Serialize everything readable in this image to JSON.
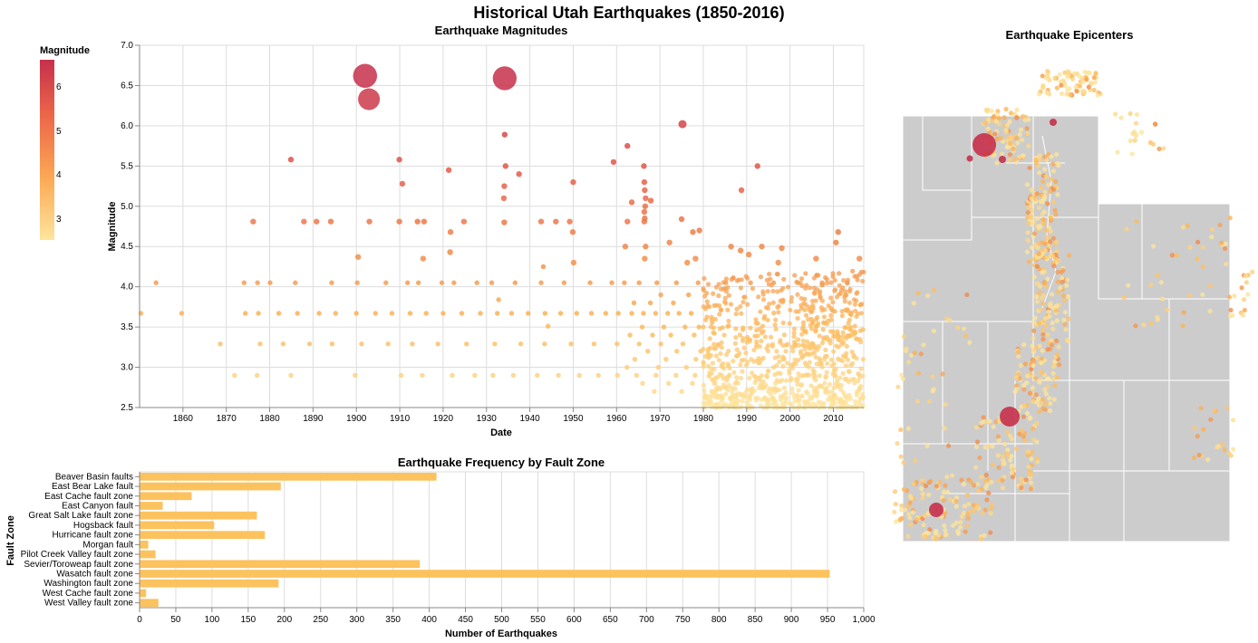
{
  "page_title": "Historical Utah Earthquakes (1850-2016)",
  "legend": {
    "title": "Magnitude",
    "ticks": [
      "6",
      "5",
      "4",
      "3"
    ],
    "colors": {
      "high": "#c6304b",
      "mid": "#ee7d49",
      "low": "#fde59d"
    }
  },
  "chart_data": [
    {
      "type": "scatter",
      "title": "Earthquake Magnitudes",
      "xlabel": "Date",
      "ylabel": "Magnitude",
      "xlim": [
        1850,
        2017
      ],
      "ylim": [
        2.5,
        7.0
      ],
      "xticks": [
        "1860",
        "1870",
        "1880",
        "1890",
        "1900",
        "1910",
        "1920",
        "1930",
        "1940",
        "1950",
        "1960",
        "1970",
        "1980",
        "1990",
        "2000",
        "2010"
      ],
      "yticks": [
        "2.5",
        "3.0",
        "3.5",
        "4.0",
        "4.5",
        "5.0",
        "5.5",
        "6.0",
        "6.5",
        "7.0"
      ],
      "grid": true,
      "points": [
        [
          1902.0,
          6.62
        ],
        [
          1934.2,
          6.59
        ],
        [
          1902.9,
          6.33
        ],
        [
          1975.2,
          6.02
        ],
        [
          1934.2,
          5.89
        ],
        [
          1962.5,
          5.75
        ],
        [
          1884.9,
          5.58
        ],
        [
          1909.9,
          5.58
        ],
        [
          1959.3,
          5.55
        ],
        [
          1966.3,
          5.5
        ],
        [
          1934.4,
          5.5
        ],
        [
          1992.5,
          5.5
        ],
        [
          1921.3,
          5.45
        ],
        [
          1937.5,
          5.4
        ],
        [
          1966.4,
          5.3
        ],
        [
          1950.0,
          5.3
        ],
        [
          1910.6,
          5.28
        ],
        [
          1934.1,
          5.25
        ],
        [
          1966.5,
          5.2
        ],
        [
          1988.8,
          5.2
        ],
        [
          1934.0,
          5.1
        ],
        [
          1966.7,
          5.1
        ],
        [
          1967.9,
          5.07
        ],
        [
          1963.5,
          5.05
        ],
        [
          1966.6,
          5.0
        ],
        [
          1966.4,
          4.93
        ],
        [
          1966.5,
          4.85
        ],
        [
          1934.1,
          4.8
        ],
        [
          1876.2,
          4.81
        ],
        [
          1887.9,
          4.81
        ],
        [
          1890.8,
          4.81
        ],
        [
          1894.1,
          4.81
        ],
        [
          1903.0,
          4.81
        ],
        [
          1909.9,
          4.81
        ],
        [
          1914.1,
          4.81
        ],
        [
          1915.6,
          4.81
        ],
        [
          1924.8,
          4.81
        ],
        [
          1942.6,
          4.81
        ],
        [
          1946.0,
          4.81
        ],
        [
          1949.2,
          4.81
        ],
        [
          1962.5,
          4.81
        ],
        [
          1966.4,
          4.81
        ],
        [
          1975.0,
          4.84
        ],
        [
          1921.7,
          4.68
        ],
        [
          1949.9,
          4.68
        ],
        [
          1977.6,
          4.68
        ],
        [
          1979.1,
          4.7
        ],
        [
          2011.1,
          4.68
        ],
        [
          1962.0,
          4.5
        ],
        [
          1966.7,
          4.5
        ],
        [
          1972.2,
          4.55
        ],
        [
          1986.4,
          4.5
        ],
        [
          1993.5,
          4.5
        ],
        [
          2010.6,
          4.55
        ],
        [
          1921.6,
          4.43
        ],
        [
          1900.4,
          4.37
        ],
        [
          1988.6,
          4.45
        ],
        [
          1998.1,
          4.48
        ],
        [
          1915.4,
          4.35
        ],
        [
          1950.1,
          4.3
        ],
        [
          1966.5,
          4.35
        ],
        [
          1978.2,
          4.35
        ],
        [
          1990.5,
          4.4
        ],
        [
          2016.0,
          4.35
        ],
        [
          1943.1,
          4.25
        ],
        [
          1976.3,
          4.3
        ],
        [
          1997.3,
          4.3
        ],
        [
          2006.0,
          4.35
        ],
        [
          1853.8,
          4.05
        ],
        [
          1874.1,
          4.05
        ],
        [
          1877.2,
          4.05
        ],
        [
          1880.1,
          4.05
        ],
        [
          1885.9,
          4.05
        ],
        [
          1894.3,
          4.05
        ],
        [
          1900.2,
          4.05
        ],
        [
          1906.8,
          4.05
        ],
        [
          1911.8,
          4.05
        ],
        [
          1914.3,
          4.05
        ],
        [
          1919.7,
          4.05
        ],
        [
          1922.5,
          4.05
        ],
        [
          1927.8,
          4.05
        ],
        [
          1931.2,
          4.05
        ],
        [
          1936.6,
          4.05
        ],
        [
          1942.6,
          4.05
        ],
        [
          1947.9,
          4.05
        ],
        [
          1953.9,
          4.05
        ],
        [
          1958.9,
          4.05
        ],
        [
          1961.8,
          4.05
        ],
        [
          1965.2,
          4.05
        ],
        [
          1969.3,
          4.05
        ],
        [
          1973.8,
          4.05
        ],
        [
          1978.8,
          4.05
        ],
        [
          1985.2,
          4.05
        ],
        [
          1990.9,
          4.05
        ],
        [
          1996.2,
          4.05
        ],
        [
          2001.8,
          4.05
        ],
        [
          2007.4,
          4.05
        ],
        [
          2013.2,
          4.05
        ],
        [
          1850.3,
          3.67
        ],
        [
          1859.7,
          3.67
        ],
        [
          1874.4,
          3.67
        ],
        [
          1877.4,
          3.67
        ],
        [
          1882.1,
          3.67
        ],
        [
          1886.4,
          3.67
        ],
        [
          1891.4,
          3.67
        ],
        [
          1895.2,
          3.67
        ],
        [
          1900.0,
          3.67
        ],
        [
          1904.4,
          3.67
        ],
        [
          1908.2,
          3.67
        ],
        [
          1912.4,
          3.67
        ],
        [
          1916.1,
          3.67
        ],
        [
          1920.0,
          3.67
        ],
        [
          1924.3,
          3.67
        ],
        [
          1928.6,
          3.67
        ],
        [
          1932.5,
          3.67
        ],
        [
          1935.8,
          3.67
        ],
        [
          1939.6,
          3.67
        ],
        [
          1943.5,
          3.67
        ],
        [
          1947.1,
          3.67
        ],
        [
          1950.8,
          3.67
        ],
        [
          1954.2,
          3.67
        ],
        [
          1957.5,
          3.67
        ],
        [
          1960.4,
          3.67
        ],
        [
          1963.5,
          3.67
        ],
        [
          1966.2,
          3.67
        ],
        [
          1969.0,
          3.67
        ],
        [
          1971.8,
          3.67
        ],
        [
          1974.4,
          3.67
        ],
        [
          1977.2,
          3.67
        ],
        [
          1932.8,
          3.84
        ],
        [
          1944.2,
          3.51
        ],
        [
          1868.6,
          3.29
        ],
        [
          1877.8,
          3.29
        ],
        [
          1883.1,
          3.29
        ],
        [
          1889.2,
          3.29
        ],
        [
          1894.4,
          3.29
        ],
        [
          1901.2,
          3.29
        ],
        [
          1907.3,
          3.29
        ],
        [
          1912.9,
          3.29
        ],
        [
          1918.8,
          3.29
        ],
        [
          1925.4,
          3.29
        ],
        [
          1931.9,
          3.29
        ],
        [
          1937.9,
          3.29
        ],
        [
          1943.4,
          3.29
        ],
        [
          1949.5,
          3.29
        ],
        [
          1954.8,
          3.29
        ],
        [
          1960.1,
          3.29
        ],
        [
          1965.2,
          3.29
        ],
        [
          1970.2,
          3.29
        ],
        [
          1975.3,
          3.29
        ],
        [
          1871.9,
          2.9
        ],
        [
          1877.1,
          2.9
        ],
        [
          1884.9,
          2.9
        ],
        [
          1899.7,
          2.9
        ],
        [
          1910.3,
          2.9
        ],
        [
          1915.2,
          2.9
        ],
        [
          1922.1,
          2.9
        ],
        [
          1927.3,
          2.9
        ],
        [
          1931.5,
          2.9
        ],
        [
          1936.2,
          2.9
        ],
        [
          1941.7,
          2.9
        ],
        [
          1946.6,
          2.9
        ],
        [
          1951.4,
          2.9
        ],
        [
          1955.8,
          2.9
        ],
        [
          1960.2,
          2.9
        ],
        [
          1964.6,
          2.9
        ],
        [
          1969.1,
          2.9
        ],
        [
          1973.7,
          2.9
        ],
        [
          1978.1,
          2.9
        ],
        [
          1962.4,
          3.0
        ],
        [
          1964.2,
          3.1
        ],
        [
          1967.2,
          3.2
        ],
        [
          1969.6,
          3.0
        ],
        [
          1971.4,
          3.1
        ],
        [
          1973.9,
          3.2
        ],
        [
          1976.1,
          3.0
        ],
        [
          1978.3,
          3.1
        ],
        [
          1979.4,
          3.2
        ],
        [
          1963.1,
          3.4
        ],
        [
          1965.9,
          3.5
        ],
        [
          1968.3,
          3.4
        ],
        [
          1970.9,
          3.5
        ],
        [
          1972.5,
          3.4
        ],
        [
          1975.8,
          3.5
        ],
        [
          1977.9,
          3.4
        ],
        [
          1979.0,
          3.5
        ],
        [
          1964.0,
          3.8
        ],
        [
          1967.8,
          3.8
        ],
        [
          1970.2,
          3.9
        ],
        [
          1973.1,
          3.8
        ],
        [
          1976.6,
          3.9
        ],
        [
          1966.0,
          2.8
        ],
        [
          1968.7,
          2.7
        ],
        [
          1972.0,
          2.8
        ],
        [
          1975.0,
          2.7
        ],
        [
          1977.5,
          2.8
        ]
      ],
      "cloud": {
        "xmin": 1980,
        "xmax": 2017,
        "ymin": 2.5,
        "ymax": 4.2,
        "count": 900
      }
    },
    {
      "type": "bar",
      "title": "Earthquake Frequency by Fault Zone",
      "xlabel": "Number of Earthquakes",
      "ylabel": "Fault Zone",
      "xlim": [
        0,
        1000
      ],
      "xticks": [
        "0",
        "50",
        "100",
        "150",
        "200",
        "250",
        "300",
        "350",
        "400",
        "450",
        "500",
        "550",
        "600",
        "650",
        "700",
        "750",
        "800",
        "850",
        "900",
        "950",
        "1,000"
      ],
      "categories": [
        "Beaver Basin faults",
        "East Bear Lake fault",
        "East Cache fault zone",
        "East Canyon fault",
        "Great Salt Lake fault zone",
        "Hogsback fault",
        "Hurricane fault zone",
        "Morgan fault",
        "Pilot Creek Valley fault zone",
        "Sevier/Toroweap fault zone",
        "Wasatch fault zone",
        "Washington fault zone",
        "West Cache fault zone",
        "West Valley fault zone"
      ],
      "values": [
        410,
        195,
        72,
        32,
        162,
        103,
        173,
        12,
        22,
        387,
        953,
        192,
        9,
        26
      ],
      "color": "#fcc25e"
    },
    {
      "type": "map",
      "title": "Earthquake Epicenters",
      "land_color": "#cccccc",
      "border_color": "#ffffff"
    }
  ]
}
